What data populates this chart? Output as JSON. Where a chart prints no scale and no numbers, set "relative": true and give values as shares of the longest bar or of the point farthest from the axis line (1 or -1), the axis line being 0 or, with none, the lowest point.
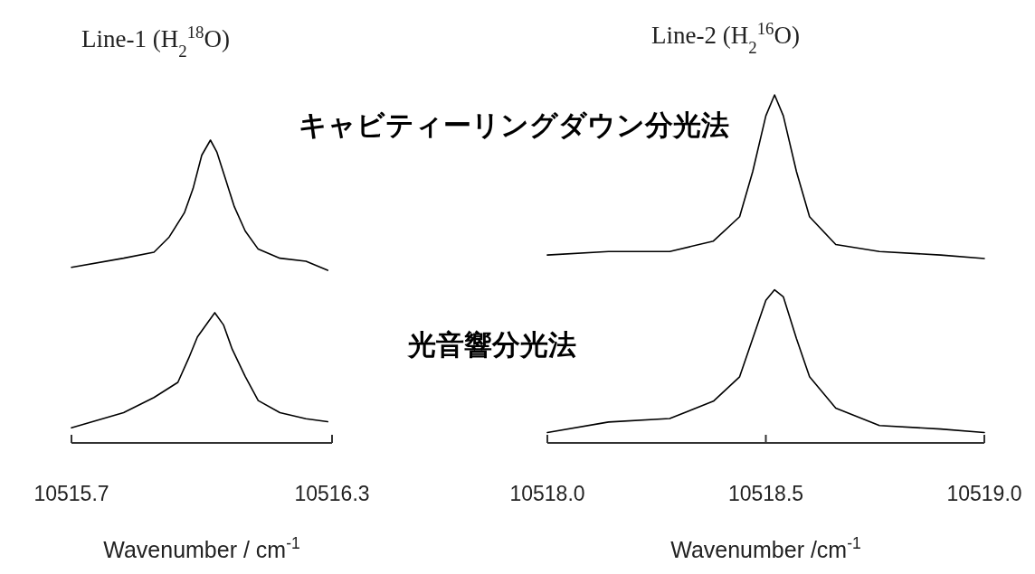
{
  "chart_data": [
    {
      "type": "line",
      "title": "Line-1 (H$_{2}$$^{18}$O)",
      "xlabel": "Wavenumber / cm$^{-1}$",
      "relative": true,
      "xlim": [
        10515.7,
        10516.3
      ],
      "xticks": [
        10515.7,
        10516.3
      ],
      "series": [
        {
          "color": "#000000",
          "x": [
            10515.7,
            10515.82,
            10515.89,
            10515.925,
            10515.96,
            10515.98,
            10516.0,
            10516.02,
            10516.035,
            10516.055,
            10516.075,
            10516.1,
            10516.13,
            10516.18,
            10516.24,
            10516.29
          ],
          "values": [
            0.58,
            0.61,
            0.63,
            0.68,
            0.76,
            0.84,
            0.95,
            1.0,
            0.96,
            0.87,
            0.78,
            0.7,
            0.64,
            0.61,
            0.6,
            0.57
          ]
        },
        {
          "color": "#000000",
          "x": [
            10515.7,
            10515.82,
            10515.89,
            10515.945,
            10515.97,
            10515.99,
            10516.015,
            10516.03,
            10516.05,
            10516.07,
            10516.1,
            10516.13,
            10516.18,
            10516.24,
            10516.29
          ],
          "values": [
            0.05,
            0.1,
            0.15,
            0.2,
            0.28,
            0.35,
            0.4,
            0.43,
            0.39,
            0.31,
            0.22,
            0.14,
            0.1,
            0.08,
            0.07
          ]
        }
      ]
    },
    {
      "type": "line",
      "title": "Line-2 (H$_{2}$$^{16}$O)",
      "xlabel": "Wavenumber /cm$^{-1}$",
      "relative": true,
      "xlim": [
        10518.0,
        10519.0
      ],
      "xticks": [
        {
          "value": 10518.0,
          "label": "10518.0"
        },
        10518.5,
        {
          "value": 10519.0,
          "label": "10519.0"
        }
      ],
      "series": [
        {
          "name": "キャビティーリングダウン分光法",
          "color": "#000000",
          "x": [
            10518.0,
            10518.14,
            10518.28,
            10518.38,
            10518.44,
            10518.47,
            10518.5,
            10518.52,
            10518.54,
            10518.57,
            10518.6,
            10518.66,
            10518.76,
            10518.9,
            10519.0
          ],
          "values": [
            0.54,
            0.55,
            0.55,
            0.58,
            0.65,
            0.78,
            0.94,
            1.0,
            0.94,
            0.78,
            0.65,
            0.57,
            0.55,
            0.54,
            0.53
          ]
        },
        {
          "name": "光音響分光法",
          "color": "#000000",
          "x": [
            10518.0,
            10518.14,
            10518.28,
            10518.38,
            10518.44,
            10518.47,
            10518.5,
            10518.52,
            10518.54,
            10518.57,
            10518.6,
            10518.66,
            10518.76,
            10518.9,
            10519.0
          ],
          "values": [
            0.03,
            0.06,
            0.07,
            0.12,
            0.19,
            0.3,
            0.41,
            0.44,
            0.42,
            0.3,
            0.19,
            0.1,
            0.05,
            0.04,
            0.03
          ]
        }
      ]
    }
  ]
}
